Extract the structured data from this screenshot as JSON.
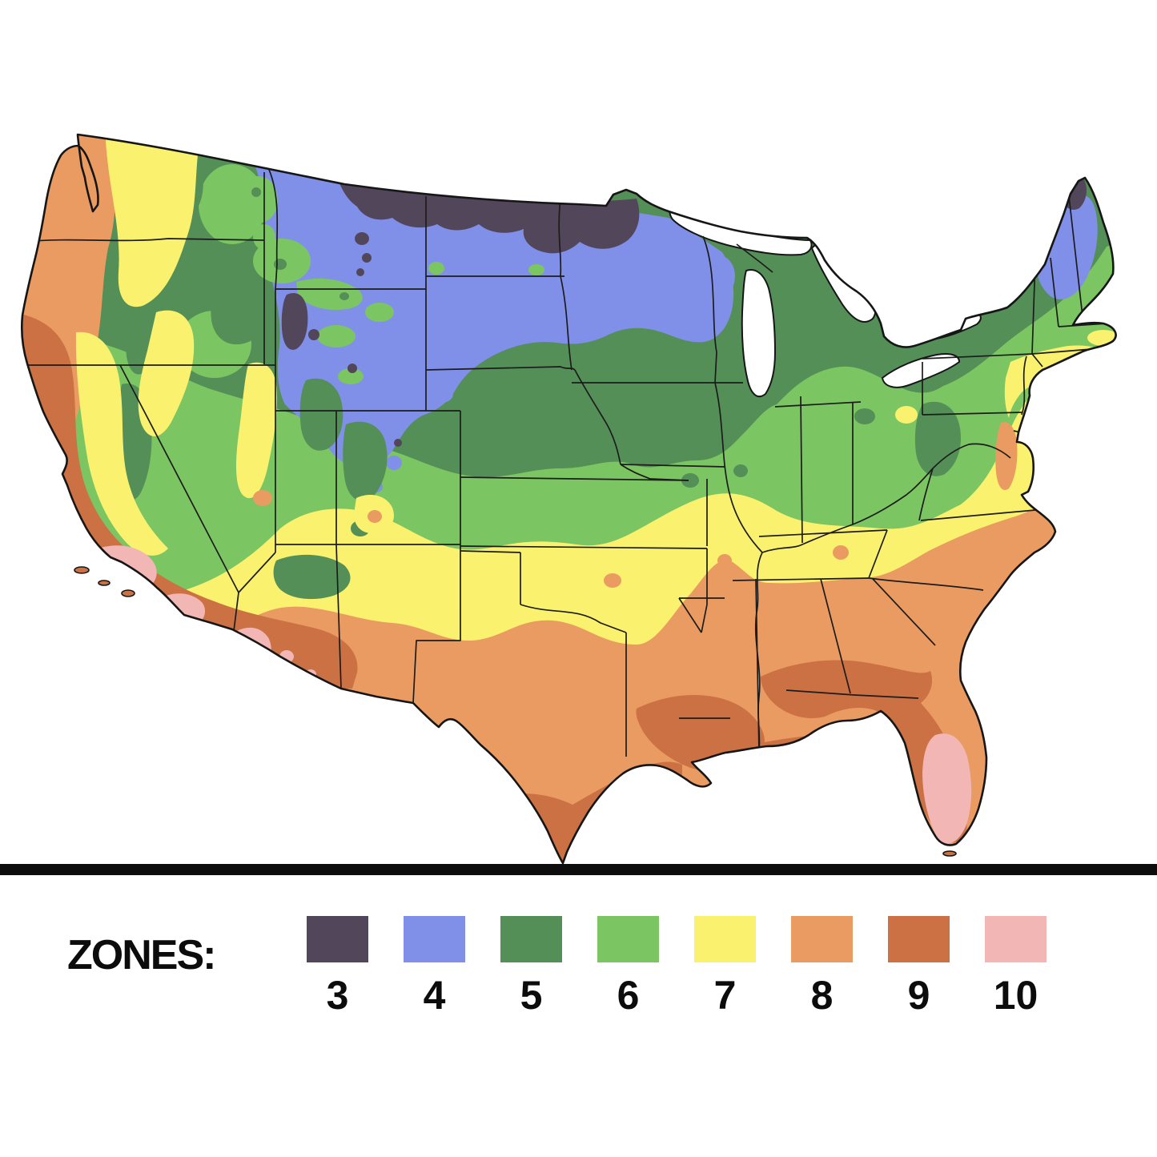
{
  "figure": {
    "description": "Color-coded plant hardiness zone map of the contiguous United States with state borders, above a legend of zones 3 through 10",
    "background": "#ffffff"
  },
  "map": {
    "outline_color": "#161616",
    "state_border_color": "#1c1c1c",
    "lake_color": "#ffffff"
  },
  "divider": {
    "color": "#0d0d0d"
  },
  "legend": {
    "label": "ZONES:",
    "zones": [
      {
        "number": "3",
        "color": "#52465a"
      },
      {
        "number": "4",
        "color": "#8090e8"
      },
      {
        "number": "5",
        "color": "#548f57"
      },
      {
        "number": "6",
        "color": "#7cc563"
      },
      {
        "number": "7",
        "color": "#faf26e"
      },
      {
        "number": "8",
        "color": "#ea9b61"
      },
      {
        "number": "9",
        "color": "#cb7144"
      },
      {
        "number": "10",
        "color": "#f2b6b4"
      }
    ]
  }
}
